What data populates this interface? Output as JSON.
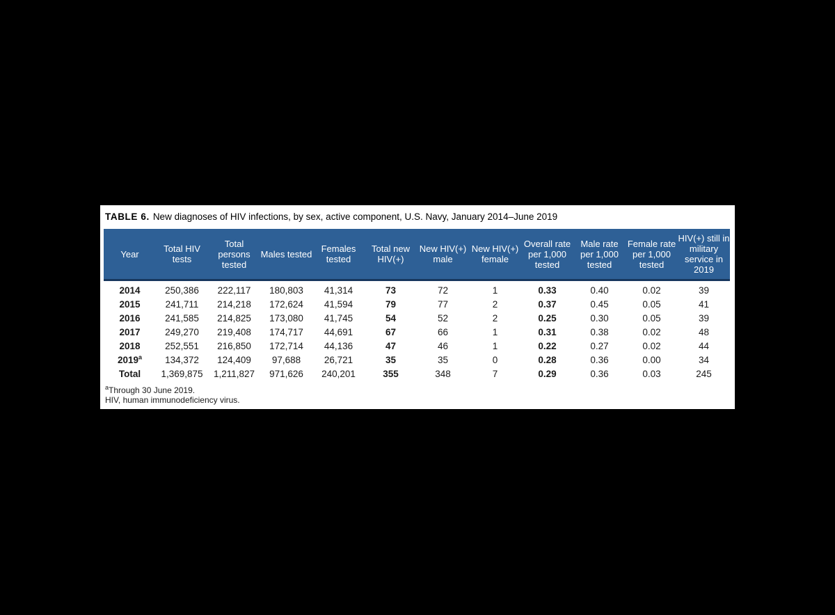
{
  "table": {
    "label": "TABLE 6.",
    "title": "New diagnoses of HIV infections, by sex, active component, U.S. Navy, January 2014–June 2019",
    "columns": [
      "Year",
      "Total HIV tests",
      "Total persons tested",
      "Males tested",
      "Females tested",
      "Total new HIV(+)",
      "New HIV(+) male",
      "New HIV(+) female",
      "Overall rate per 1,000 tested",
      "Male rate per 1,000 tested",
      "Female rate per 1,000 tested",
      "HIV(+) still in military service in 2019"
    ],
    "rows": [
      [
        "2014",
        "250,386",
        "222,117",
        "180,803",
        "41,314",
        "73",
        "72",
        "1",
        "0.33",
        "0.40",
        "0.02",
        "39"
      ],
      [
        "2015",
        "241,711",
        "214,218",
        "172,624",
        "41,594",
        "79",
        "77",
        "2",
        "0.37",
        "0.45",
        "0.05",
        "41"
      ],
      [
        "2016",
        "241,585",
        "214,825",
        "173,080",
        "41,745",
        "54",
        "52",
        "2",
        "0.25",
        "0.30",
        "0.05",
        "39"
      ],
      [
        "2017",
        "249,270",
        "219,408",
        "174,717",
        "44,691",
        "67",
        "66",
        "1",
        "0.31",
        "0.38",
        "0.02",
        "48"
      ],
      [
        "2018",
        "252,551",
        "216,850",
        "172,714",
        "44,136",
        "47",
        "46",
        "1",
        "0.22",
        "0.27",
        "0.02",
        "44"
      ],
      [
        "2019ᵃ",
        "134,372",
        "124,409",
        "97,688",
        "26,721",
        "35",
        "35",
        "0",
        "0.28",
        "0.36",
        "0.00",
        "34"
      ],
      [
        "Total",
        "1,369,875",
        "1,211,827",
        "971,626",
        "240,201",
        "355",
        "348",
        "7",
        "0.29",
        "0.36",
        "0.03",
        "245"
      ]
    ],
    "footnotes": [
      "ᵃThrough 30 June 2019.",
      "HIV, human immunodeficiency virus."
    ],
    "colors": {
      "page_bg": "#000000",
      "card_bg": "#FFFFFF",
      "header_bg": "#2E6096",
      "header_rule": "#17375E"
    }
  }
}
